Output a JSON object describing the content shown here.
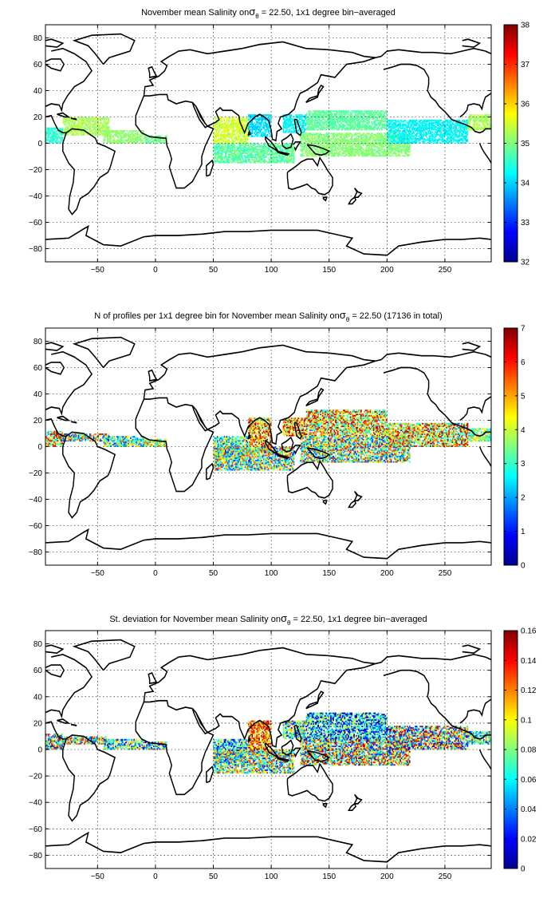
{
  "chart_data": [
    {
      "type": "heatmap",
      "title": "November mean Salinity on",
      "title_sym": "σ",
      "title_sub": "θ",
      "title_tail": " = 22.50, 1x1 degree bin−averaged",
      "xticks": [
        -50,
        0,
        50,
        100,
        150,
        200,
        250
      ],
      "xtick_labels": [
        "−50",
        "0",
        "50",
        "100",
        "150",
        "200",
        "250"
      ],
      "yticks": [
        80,
        60,
        40,
        20,
        0,
        -20,
        -40,
        -60,
        -80
      ],
      "ytick_labels": [
        "80",
        "60",
        "40",
        "20",
        "0",
        "−20",
        "−40",
        "−60",
        "−80"
      ],
      "xlim": [
        -95,
        290
      ],
      "ylim": [
        -90,
        90
      ],
      "colorbar": {
        "ticks": [
          38,
          37,
          36,
          35,
          34,
          33,
          32
        ],
        "tick_labels": [
          "38",
          "37",
          "36",
          "35",
          "34",
          "33",
          "32"
        ],
        "range": [
          32,
          38
        ],
        "colormap": "jet"
      },
      "regions": [
        {
          "lon": [
            -95,
            -80
          ],
          "lat": [
            0,
            12
          ],
          "v": [
            34.2,
            34.8
          ]
        },
        {
          "lon": [
            -80,
            -40
          ],
          "lat": [
            6,
            20
          ],
          "v": [
            35.0,
            35.5
          ]
        },
        {
          "lon": [
            -45,
            -10
          ],
          "lat": [
            0,
            10
          ],
          "v": [
            34.9,
            35.3
          ]
        },
        {
          "lon": [
            -10,
            10
          ],
          "lat": [
            0,
            6
          ],
          "v": [
            34.7,
            35.1
          ]
        },
        {
          "lon": [
            50,
            80
          ],
          "lat": [
            0,
            20
          ],
          "v": [
            35.1,
            35.8
          ]
        },
        {
          "lon": [
            80,
            100
          ],
          "lat": [
            5,
            22
          ],
          "v": [
            33.8,
            34.3
          ]
        },
        {
          "lon": [
            50,
            120
          ],
          "lat": [
            -15,
            0
          ],
          "v": [
            34.4,
            35.2
          ]
        },
        {
          "lon": [
            110,
            130
          ],
          "lat": [
            8,
            22
          ],
          "v": [
            34.0,
            34.5
          ]
        },
        {
          "lon": [
            130,
            200
          ],
          "lat": [
            10,
            25
          ],
          "v": [
            34.6,
            35.0
          ]
        },
        {
          "lon": [
            125,
            220
          ],
          "lat": [
            -10,
            8
          ],
          "v": [
            34.8,
            35.3
          ]
        },
        {
          "lon": [
            200,
            270
          ],
          "lat": [
            0,
            18
          ],
          "v": [
            34.0,
            34.5
          ]
        },
        {
          "lon": [
            270,
            290
          ],
          "lat": [
            10,
            22
          ],
          "v": [
            35.0,
            35.5
          ]
        }
      ]
    },
    {
      "type": "heatmap",
      "title": "N of profiles per 1x1 degree bin for November mean Salinity on",
      "title_sym": "σ",
      "title_sub": "θ",
      "title_tail": " = 22.50 (17136 in total)",
      "xticks": [
        -50,
        0,
        50,
        100,
        150,
        200,
        250
      ],
      "xtick_labels": [
        "−50",
        "0",
        "50",
        "100",
        "150",
        "200",
        "250"
      ],
      "yticks": [
        80,
        60,
        40,
        20,
        0,
        -20,
        -40,
        -60,
        -80
      ],
      "ytick_labels": [
        "80",
        "60",
        "40",
        "20",
        "0",
        "−20",
        "−40",
        "−60",
        "−80"
      ],
      "xlim": [
        -95,
        290
      ],
      "ylim": [
        -90,
        90
      ],
      "colorbar": {
        "ticks": [
          7,
          6,
          5,
          4,
          3,
          2,
          1,
          0
        ],
        "tick_labels": [
          "7",
          "6",
          "5",
          "4",
          "3",
          "2",
          "1",
          "0"
        ],
        "range": [
          0,
          7
        ],
        "colormap": "jet"
      },
      "regions": [
        {
          "lon": [
            -95,
            -80
          ],
          "lat": [
            0,
            12
          ],
          "v": [
            2,
            7
          ]
        },
        {
          "lon": [
            -80,
            -40
          ],
          "lat": [
            4,
            10
          ],
          "v": [
            1,
            6
          ]
        },
        {
          "lon": [
            -45,
            -10
          ],
          "lat": [
            0,
            8
          ],
          "v": [
            1,
            5
          ]
        },
        {
          "lon": [
            -10,
            10
          ],
          "lat": [
            0,
            6
          ],
          "v": [
            2,
            6
          ]
        },
        {
          "lon": [
            50,
            80
          ],
          "lat": [
            -10,
            8
          ],
          "v": [
            1,
            5
          ]
        },
        {
          "lon": [
            80,
            100
          ],
          "lat": [
            -5,
            22
          ],
          "v": [
            3,
            7
          ]
        },
        {
          "lon": [
            50,
            120
          ],
          "lat": [
            -18,
            0
          ],
          "v": [
            1,
            6
          ]
        },
        {
          "lon": [
            110,
            130
          ],
          "lat": [
            8,
            22
          ],
          "v": [
            3,
            7
          ]
        },
        {
          "lon": [
            130,
            200
          ],
          "lat": [
            8,
            28
          ],
          "v": [
            2,
            7
          ]
        },
        {
          "lon": [
            125,
            220
          ],
          "lat": [
            -12,
            8
          ],
          "v": [
            1,
            6
          ]
        },
        {
          "lon": [
            200,
            270
          ],
          "lat": [
            0,
            18
          ],
          "v": [
            2,
            7
          ]
        },
        {
          "lon": [
            270,
            290
          ],
          "lat": [
            4,
            14
          ],
          "v": [
            2,
            5
          ]
        }
      ]
    },
    {
      "type": "heatmap",
      "title": "St. deviation for November mean Salinity on",
      "title_sym": "σ",
      "title_sub": "θ",
      "title_tail": " = 22.50, 1x1 degree bin−averaged",
      "xticks": [
        -50,
        0,
        50,
        100,
        150,
        200,
        250
      ],
      "xtick_labels": [
        "−50",
        "0",
        "50",
        "100",
        "150",
        "200",
        "250"
      ],
      "yticks": [
        80,
        60,
        40,
        20,
        0,
        -20,
        -40,
        -60,
        -80
      ],
      "ytick_labels": [
        "80",
        "60",
        "40",
        "20",
        "0",
        "−20",
        "−40",
        "−60",
        "−80"
      ],
      "xlim": [
        -95,
        290
      ],
      "ylim": [
        -90,
        90
      ],
      "colorbar": {
        "ticks": [
          0.16,
          0.14,
          0.12,
          0.1,
          0.08,
          0.06,
          0.04,
          0.02,
          0
        ],
        "tick_labels": [
          "0.16",
          "0.14",
          "0.12",
          "0.1",
          "0.08",
          "0.06",
          "0.04",
          "0.02",
          "0"
        ],
        "range": [
          0,
          0.16
        ],
        "colormap": "jet"
      },
      "regions": [
        {
          "lon": [
            -95,
            -80
          ],
          "lat": [
            0,
            12
          ],
          "v": [
            0.02,
            0.16
          ]
        },
        {
          "lon": [
            -80,
            -40
          ],
          "lat": [
            4,
            10
          ],
          "v": [
            0.02,
            0.15
          ]
        },
        {
          "lon": [
            -45,
            -10
          ],
          "lat": [
            0,
            8
          ],
          "v": [
            0.01,
            0.12
          ]
        },
        {
          "lon": [
            -10,
            10
          ],
          "lat": [
            0,
            6
          ],
          "v": [
            0.02,
            0.14
          ]
        },
        {
          "lon": [
            50,
            80
          ],
          "lat": [
            -10,
            8
          ],
          "v": [
            0.01,
            0.1
          ]
        },
        {
          "lon": [
            80,
            100
          ],
          "lat": [
            -5,
            22
          ],
          "v": [
            0.08,
            0.16
          ]
        },
        {
          "lon": [
            50,
            120
          ],
          "lat": [
            -18,
            0
          ],
          "v": [
            0.02,
            0.14
          ]
        },
        {
          "lon": [
            110,
            130
          ],
          "lat": [
            8,
            22
          ],
          "v": [
            0.02,
            0.12
          ]
        },
        {
          "lon": [
            130,
            200
          ],
          "lat": [
            8,
            28
          ],
          "v": [
            0.0,
            0.1
          ]
        },
        {
          "lon": [
            125,
            220
          ],
          "lat": [
            -12,
            8
          ],
          "v": [
            0.02,
            0.16
          ]
        },
        {
          "lon": [
            200,
            270
          ],
          "lat": [
            0,
            18
          ],
          "v": [
            0.01,
            0.16
          ]
        },
        {
          "lon": [
            270,
            290
          ],
          "lat": [
            4,
            14
          ],
          "v": [
            0.02,
            0.12
          ]
        }
      ]
    }
  ]
}
